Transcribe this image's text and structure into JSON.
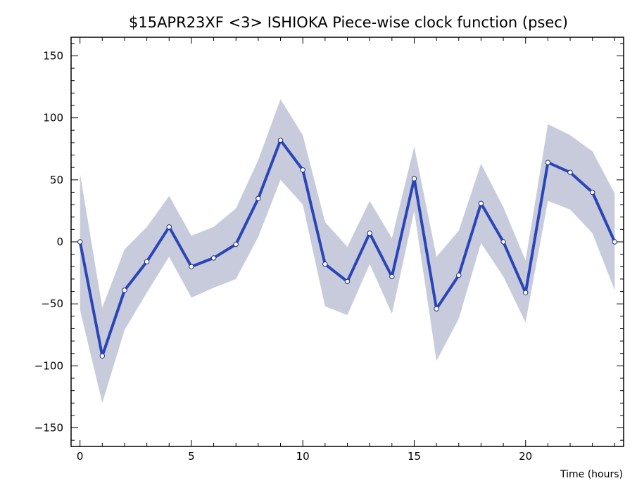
{
  "chart_data": {
    "type": "line",
    "title": "$15APR23XF <3>  ISHIOKA   Piece-wise clock function (psec)",
    "xlabel": "Time (hours)",
    "ylabel": "",
    "xlim": [
      -0.4,
      24.4
    ],
    "ylim": [
      -165,
      165
    ],
    "x_ticks": [
      0,
      5,
      10,
      15,
      20
    ],
    "y_ticks": [
      -150,
      -100,
      -50,
      0,
      50,
      100,
      150
    ],
    "x_tick_labels": [
      "0",
      "5",
      "10",
      "15",
      "20"
    ],
    "y_tick_labels": [
      "−150",
      "−100",
      "−50",
      "0",
      "50",
      "100",
      "150"
    ],
    "grid": false,
    "colors": {
      "line": "#2a45b8",
      "band": "#c8cbdc",
      "marker_fill": "#ffffff"
    },
    "series": [
      {
        "x": [
          0,
          1,
          2,
          3,
          4,
          5,
          6,
          7,
          8,
          9,
          10,
          11,
          12,
          13,
          14,
          15,
          16,
          17,
          18,
          19,
          20,
          21,
          22,
          23,
          24
        ],
        "values": [
          0,
          -92,
          -39,
          -16,
          12,
          -20,
          -13,
          -2,
          35,
          82,
          58,
          -18,
          -32,
          7,
          -28,
          51,
          -54,
          -27,
          31,
          0,
          -41,
          64,
          56,
          40,
          0
        ],
        "upper": [
          55,
          -53,
          -6,
          12,
          37,
          5,
          12,
          27,
          66,
          115,
          86,
          16,
          -4,
          33,
          3,
          77,
          -12,
          9,
          63,
          28,
          -15,
          95,
          86,
          73,
          39
        ],
        "lower": [
          -55,
          -130,
          -71,
          -41,
          -12,
          -45,
          -37,
          -30,
          4,
          50,
          30,
          -52,
          -59,
          -18,
          -58,
          25,
          -96,
          -62,
          -1,
          -28,
          -65,
          33,
          26,
          7,
          -39
        ]
      }
    ]
  }
}
